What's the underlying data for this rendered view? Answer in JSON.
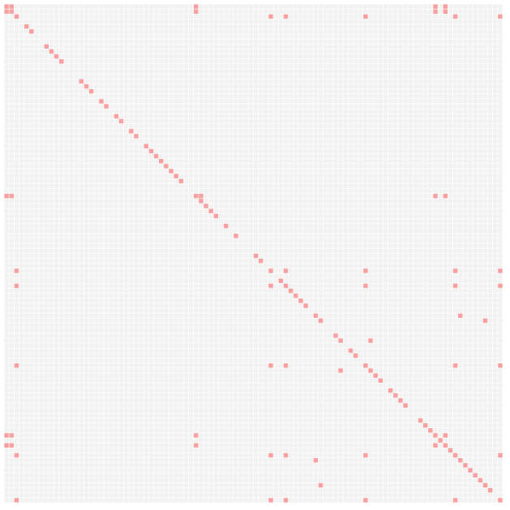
{
  "chart_data": {
    "type": "heatmap",
    "title": "",
    "xlabel": "",
    "ylabel": "",
    "size": 100,
    "grid": true,
    "colors": {
      "background": "#ffffff",
      "empty_cell": "#f2f2f2",
      "filled_cell": "#f8a0a0"
    },
    "filled_cells": [
      [
        0,
        0
      ],
      [
        0,
        1
      ],
      [
        0,
        38
      ],
      [
        0,
        86
      ],
      [
        0,
        88
      ],
      [
        1,
        0
      ],
      [
        1,
        1
      ],
      [
        1,
        38
      ],
      [
        1,
        86
      ],
      [
        1,
        88
      ],
      [
        2,
        2
      ],
      [
        2,
        53
      ],
      [
        2,
        56
      ],
      [
        2,
        72
      ],
      [
        2,
        90
      ],
      [
        2,
        99
      ],
      [
        4,
        4
      ],
      [
        5,
        5
      ],
      [
        8,
        8
      ],
      [
        9,
        9
      ],
      [
        10,
        10
      ],
      [
        11,
        11
      ],
      [
        15,
        15
      ],
      [
        16,
        16
      ],
      [
        17,
        17
      ],
      [
        19,
        19
      ],
      [
        20,
        20
      ],
      [
        22,
        22
      ],
      [
        23,
        23
      ],
      [
        25,
        25
      ],
      [
        26,
        26
      ],
      [
        28,
        28
      ],
      [
        29,
        29
      ],
      [
        30,
        30
      ],
      [
        31,
        31
      ],
      [
        32,
        32
      ],
      [
        33,
        33
      ],
      [
        34,
        34
      ],
      [
        35,
        35
      ],
      [
        38,
        0
      ],
      [
        38,
        1
      ],
      [
        38,
        38
      ],
      [
        38,
        39
      ],
      [
        38,
        86
      ],
      [
        38,
        88
      ],
      [
        39,
        39
      ],
      [
        40,
        40
      ],
      [
        41,
        41
      ],
      [
        42,
        42
      ],
      [
        44,
        44
      ],
      [
        46,
        46
      ],
      [
        50,
        50
      ],
      [
        51,
        51
      ],
      [
        53,
        2
      ],
      [
        53,
        53
      ],
      [
        53,
        56
      ],
      [
        53,
        72
      ],
      [
        53,
        90
      ],
      [
        53,
        99
      ],
      [
        55,
        55
      ],
      [
        56,
        2
      ],
      [
        56,
        53
      ],
      [
        56,
        56
      ],
      [
        56,
        72
      ],
      [
        56,
        90
      ],
      [
        56,
        99
      ],
      [
        57,
        57
      ],
      [
        58,
        58
      ],
      [
        59,
        59
      ],
      [
        60,
        60
      ],
      [
        62,
        62
      ],
      [
        63,
        63
      ],
      [
        62,
        91
      ],
      [
        63,
        96
      ],
      [
        66,
        66
      ],
      [
        67,
        67
      ],
      [
        67,
        73
      ],
      [
        69,
        69
      ],
      [
        70,
        70
      ],
      [
        72,
        2
      ],
      [
        72,
        53
      ],
      [
        72,
        56
      ],
      [
        72,
        72
      ],
      [
        72,
        90
      ],
      [
        72,
        99
      ],
      [
        73,
        67
      ],
      [
        73,
        73
      ],
      [
        74,
        74
      ],
      [
        75,
        75
      ],
      [
        77,
        77
      ],
      [
        78,
        78
      ],
      [
        79,
        79
      ],
      [
        80,
        80
      ],
      [
        83,
        83
      ],
      [
        84,
        84
      ],
      [
        85,
        85
      ],
      [
        86,
        0
      ],
      [
        86,
        1
      ],
      [
        86,
        38
      ],
      [
        86,
        86
      ],
      [
        86,
        88
      ],
      [
        87,
        87
      ],
      [
        88,
        0
      ],
      [
        88,
        1
      ],
      [
        88,
        38
      ],
      [
        88,
        86
      ],
      [
        88,
        88
      ],
      [
        89,
        89
      ],
      [
        90,
        2
      ],
      [
        90,
        53
      ],
      [
        90,
        56
      ],
      [
        90,
        72
      ],
      [
        90,
        90
      ],
      [
        90,
        99
      ],
      [
        91,
        62
      ],
      [
        91,
        91
      ],
      [
        92,
        92
      ],
      [
        93,
        93
      ],
      [
        94,
        94
      ],
      [
        95,
        95
      ],
      [
        96,
        63
      ],
      [
        96,
        96
      ],
      [
        97,
        97
      ],
      [
        99,
        2
      ],
      [
        99,
        53
      ],
      [
        99,
        56
      ],
      [
        99,
        72
      ],
      [
        99,
        90
      ],
      [
        99,
        99
      ]
    ]
  }
}
